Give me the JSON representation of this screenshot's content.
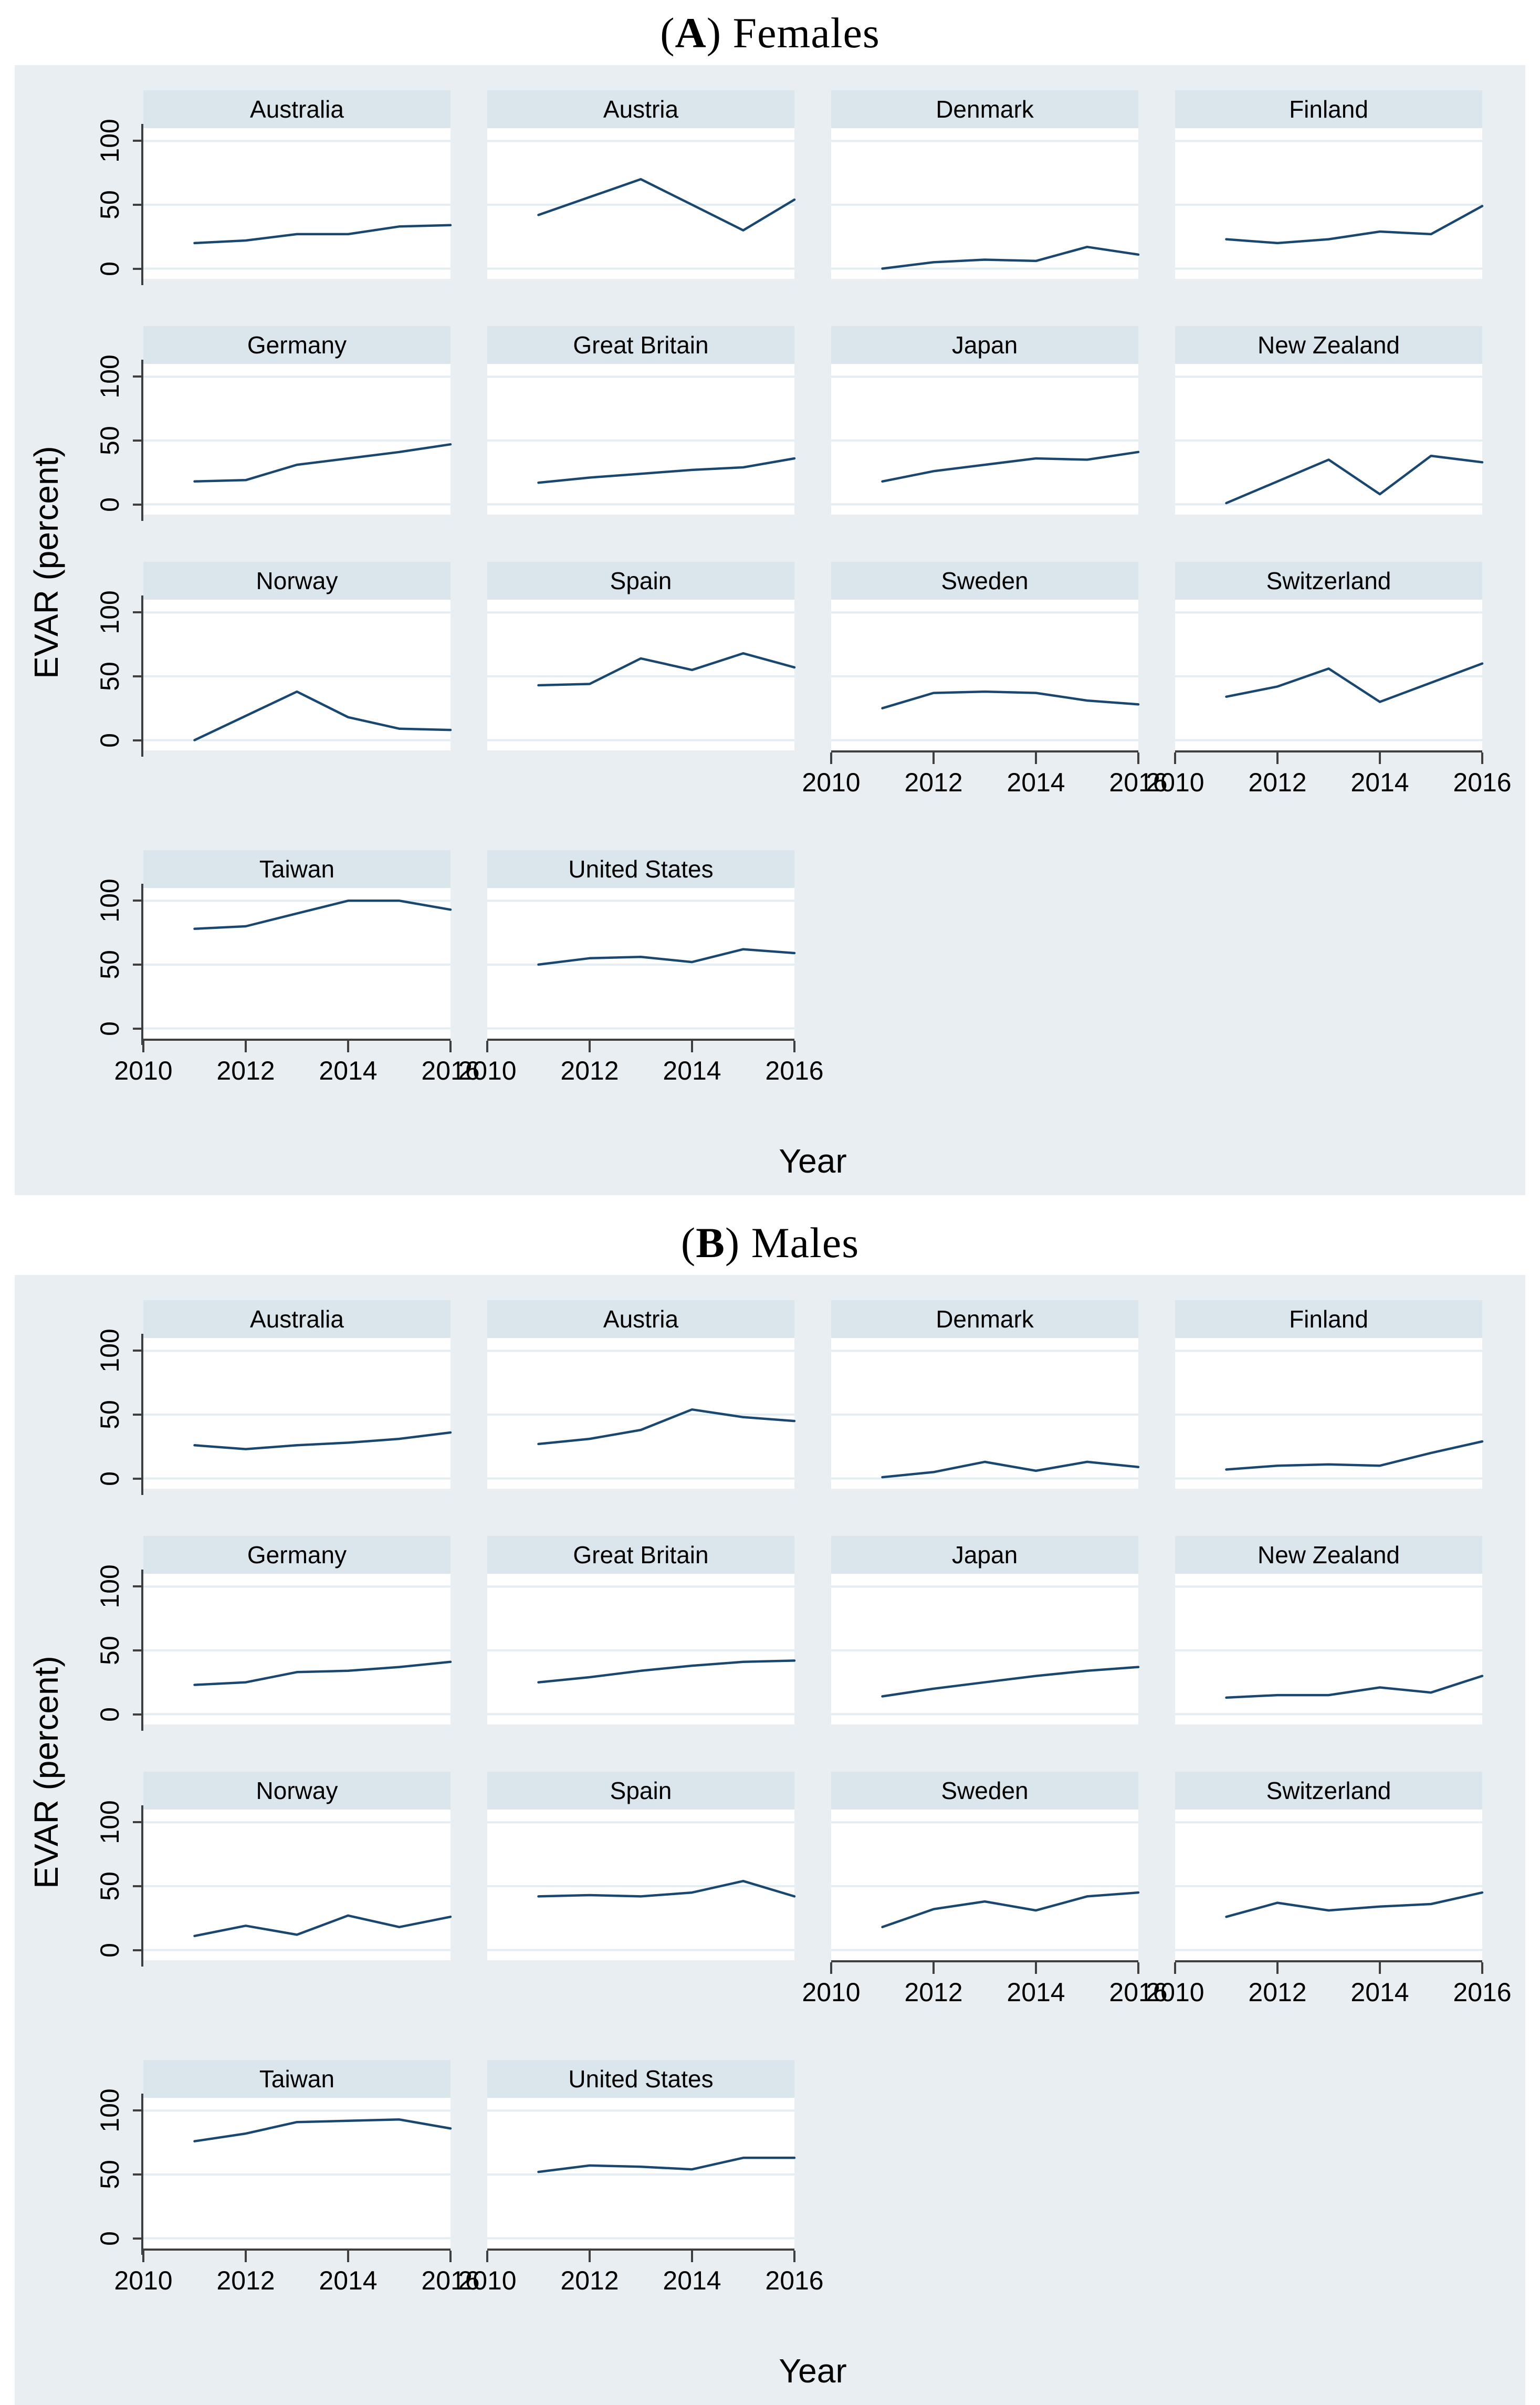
{
  "colors": {
    "panel_background": "#e9eef2",
    "subplot_header_background": "#dbe5ec",
    "gridline": "#e3edf2",
    "axis": "#3f3f3f",
    "line": "#1a476f"
  },
  "chart_data": [
    {
      "type": "line",
      "panel_id": "A",
      "title_prefix": "(",
      "title_letter": "A",
      "title_suffix": ") Females",
      "title_full": "(A) Females",
      "xlabel": "Year",
      "ylabel": "EVAR (percent)",
      "x": [
        2011,
        2012,
        2013,
        2014,
        2015,
        2016
      ],
      "xlim": [
        2010,
        2016
      ],
      "ylim": [
        -8,
        110
      ],
      "xticks": [
        2010,
        2012,
        2014,
        2016
      ],
      "yticks": [
        0,
        50,
        100
      ],
      "grid": "horizontal-gridlines",
      "legend": "none",
      "series": [
        {
          "name": "Australia",
          "values": [
            20,
            22,
            27,
            27,
            33,
            34
          ]
        },
        {
          "name": "Austria",
          "values": [
            42,
            56,
            70,
            50,
            30,
            54
          ]
        },
        {
          "name": "Denmark",
          "values": [
            0,
            5,
            7,
            6,
            17,
            11
          ]
        },
        {
          "name": "Finland",
          "values": [
            23,
            20,
            23,
            29,
            27,
            49
          ]
        },
        {
          "name": "Germany",
          "values": [
            18,
            19,
            31,
            36,
            41,
            47
          ]
        },
        {
          "name": "Great Britain",
          "values": [
            17,
            21,
            24,
            27,
            29,
            36
          ]
        },
        {
          "name": "Japan",
          "values": [
            18,
            26,
            31,
            36,
            35,
            41
          ]
        },
        {
          "name": "New Zealand",
          "values": [
            1,
            18,
            35,
            8,
            38,
            33
          ]
        },
        {
          "name": "Norway",
          "values": [
            0,
            19,
            38,
            18,
            9,
            8
          ]
        },
        {
          "name": "Spain",
          "values": [
            43,
            44,
            64,
            55,
            68,
            57
          ]
        },
        {
          "name": "Sweden",
          "values": [
            25,
            37,
            38,
            37,
            31,
            28
          ]
        },
        {
          "name": "Switzerland",
          "values": [
            34,
            42,
            56,
            30,
            45,
            60
          ]
        },
        {
          "name": "Taiwan",
          "values": [
            78,
            80,
            90,
            100,
            100,
            93
          ]
        },
        {
          "name": "United States",
          "values": [
            50,
            55,
            56,
            52,
            62,
            59
          ]
        }
      ]
    },
    {
      "type": "line",
      "panel_id": "B",
      "title_prefix": "(",
      "title_letter": "B",
      "title_suffix": ") Males",
      "title_full": "(B) Males",
      "xlabel": "Year",
      "ylabel": "EVAR (percent)",
      "x": [
        2011,
        2012,
        2013,
        2014,
        2015,
        2016
      ],
      "xlim": [
        2010,
        2016
      ],
      "ylim": [
        -8,
        110
      ],
      "xticks": [
        2010,
        2012,
        2014,
        2016
      ],
      "yticks": [
        0,
        50,
        100
      ],
      "grid": "horizontal-gridlines",
      "legend": "none",
      "series": [
        {
          "name": "Australia",
          "values": [
            26,
            23,
            26,
            28,
            31,
            36
          ]
        },
        {
          "name": "Austria",
          "values": [
            27,
            31,
            38,
            54,
            48,
            45
          ]
        },
        {
          "name": "Denmark",
          "values": [
            1,
            5,
            13,
            6,
            13,
            9
          ]
        },
        {
          "name": "Finland",
          "values": [
            7,
            10,
            11,
            10,
            20,
            29
          ]
        },
        {
          "name": "Germany",
          "values": [
            23,
            25,
            33,
            34,
            37,
            41
          ]
        },
        {
          "name": "Great Britain",
          "values": [
            25,
            29,
            34,
            38,
            41,
            42
          ]
        },
        {
          "name": "Japan",
          "values": [
            14,
            20,
            25,
            30,
            34,
            37
          ]
        },
        {
          "name": "New Zealand",
          "values": [
            13,
            15,
            15,
            21,
            17,
            30
          ]
        },
        {
          "name": "Norway",
          "values": [
            11,
            19,
            12,
            27,
            18,
            26
          ]
        },
        {
          "name": "Spain",
          "values": [
            42,
            43,
            42,
            45,
            54,
            42
          ]
        },
        {
          "name": "Sweden",
          "values": [
            18,
            32,
            38,
            31,
            42,
            45
          ]
        },
        {
          "name": "Switzerland",
          "values": [
            26,
            37,
            31,
            34,
            36,
            45
          ]
        },
        {
          "name": "Taiwan",
          "values": [
            76,
            82,
            91,
            92,
            93,
            86
          ]
        },
        {
          "name": "United States",
          "values": [
            52,
            57,
            56,
            54,
            63,
            63
          ]
        }
      ]
    }
  ]
}
